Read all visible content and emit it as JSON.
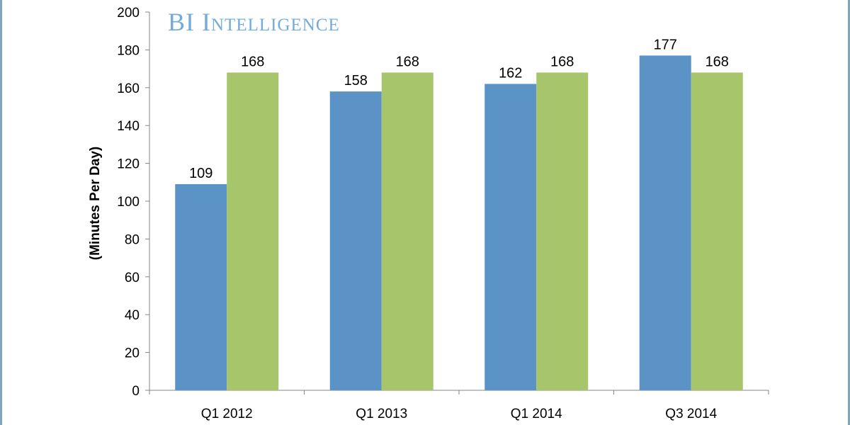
{
  "chart_data": {
    "type": "bar",
    "categories": [
      "Q1 2012",
      "Q1 2013",
      "Q1 2014",
      "Q3 2014"
    ],
    "series": [
      {
        "values": [
          109,
          158,
          162,
          177
        ],
        "color": "#5b93c7"
      },
      {
        "values": [
          168,
          168,
          168,
          168
        ],
        "color": "#a7c56b"
      }
    ],
    "ylabel": "(Minutes Per Day)",
    "ylim": [
      0,
      200
    ],
    "yticks": [
      0,
      20,
      40,
      60,
      80,
      100,
      120,
      140,
      160,
      180,
      200
    ],
    "grid": false,
    "legend": "none"
  },
  "watermark": {
    "text": "BI Intelligence",
    "color": "#5b9bd5"
  }
}
